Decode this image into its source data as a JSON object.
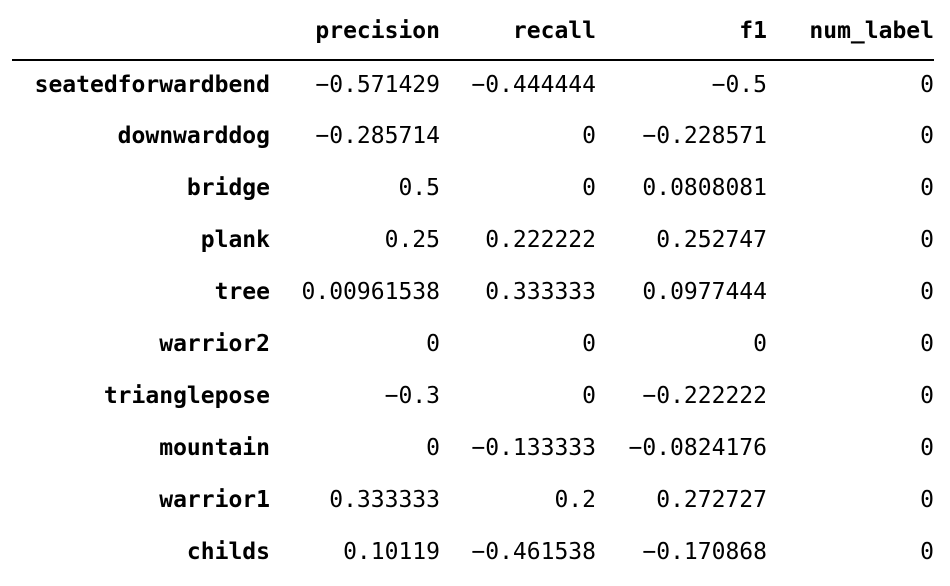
{
  "table": {
    "index_header": "",
    "columns": [
      "precision",
      "recall",
      "f1",
      "num_label"
    ],
    "rows": [
      {
        "label": "seatedforwardbend",
        "values": [
          "−0.571429",
          "−0.444444",
          "−0.5",
          "0"
        ]
      },
      {
        "label": "downwarddog",
        "values": [
          "−0.285714",
          "0",
          "−0.228571",
          "0"
        ]
      },
      {
        "label": "bridge",
        "values": [
          "0.5",
          "0",
          "0.0808081",
          "0"
        ]
      },
      {
        "label": "plank",
        "values": [
          "0.25",
          "0.222222",
          "0.252747",
          "0"
        ]
      },
      {
        "label": "tree",
        "values": [
          "0.00961538",
          "0.333333",
          "0.0977444",
          "0"
        ]
      },
      {
        "label": "warrior2",
        "values": [
          "0",
          "0",
          "0",
          "0"
        ]
      },
      {
        "label": "trianglepose",
        "values": [
          "−0.3",
          "0",
          "−0.222222",
          "0"
        ]
      },
      {
        "label": "mountain",
        "values": [
          "0",
          "−0.133333",
          "−0.0824176",
          "0"
        ]
      },
      {
        "label": "warrior1",
        "values": [
          "0.333333",
          "0.2",
          "0.272727",
          "0"
        ]
      },
      {
        "label": "childs",
        "values": [
          "0.10119",
          "−0.461538",
          "−0.170868",
          "0"
        ]
      }
    ]
  }
}
